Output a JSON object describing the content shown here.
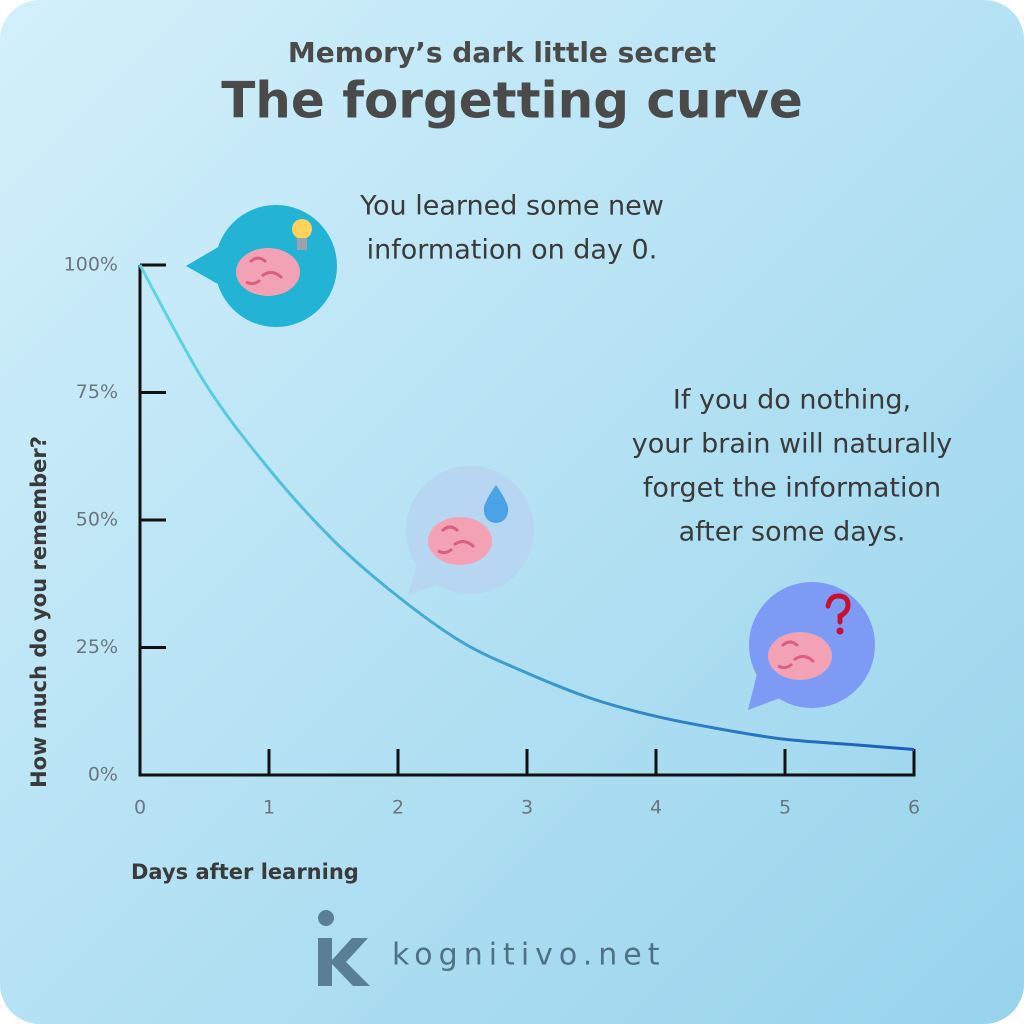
{
  "chart_data": {
    "type": "line",
    "subtitle": "Memory’s dark little secret",
    "title": "The forgetting curve",
    "x_label": "Days after learning",
    "y_label": "How much do you remember?",
    "x": [
      0,
      0.5,
      1,
      1.5,
      2,
      2.5,
      3,
      3.5,
      4,
      4.5,
      5,
      5.5,
      6
    ],
    "values": [
      100,
      77,
      60,
      46,
      35,
      26,
      20,
      15,
      11.5,
      9,
      7,
      6,
      5
    ],
    "colors": [
      "#5fd8e2",
      "#1a5cb8"
    ],
    "xlim": [
      0,
      6
    ],
    "xticks": [
      0,
      1,
      2,
      3,
      4,
      5,
      6
    ],
    "ylim": [
      0,
      100
    ],
    "yticks": [
      {
        "value": 0,
        "label": "0%"
      },
      {
        "value": 25,
        "label": "25%"
      },
      {
        "value": 50,
        "label": "50%"
      },
      {
        "value": 75,
        "label": "75%"
      },
      {
        "value": 100,
        "label": "100%"
      }
    ],
    "annotations": [
      {
        "lines": [
          "You learned some new",
          "information on day 0."
        ]
      },
      {
        "lines": [
          "If you do nothing,",
          "your brain will naturally",
          "forget the information",
          "after some days."
        ]
      }
    ],
    "brand": "kognitivo.net"
  }
}
